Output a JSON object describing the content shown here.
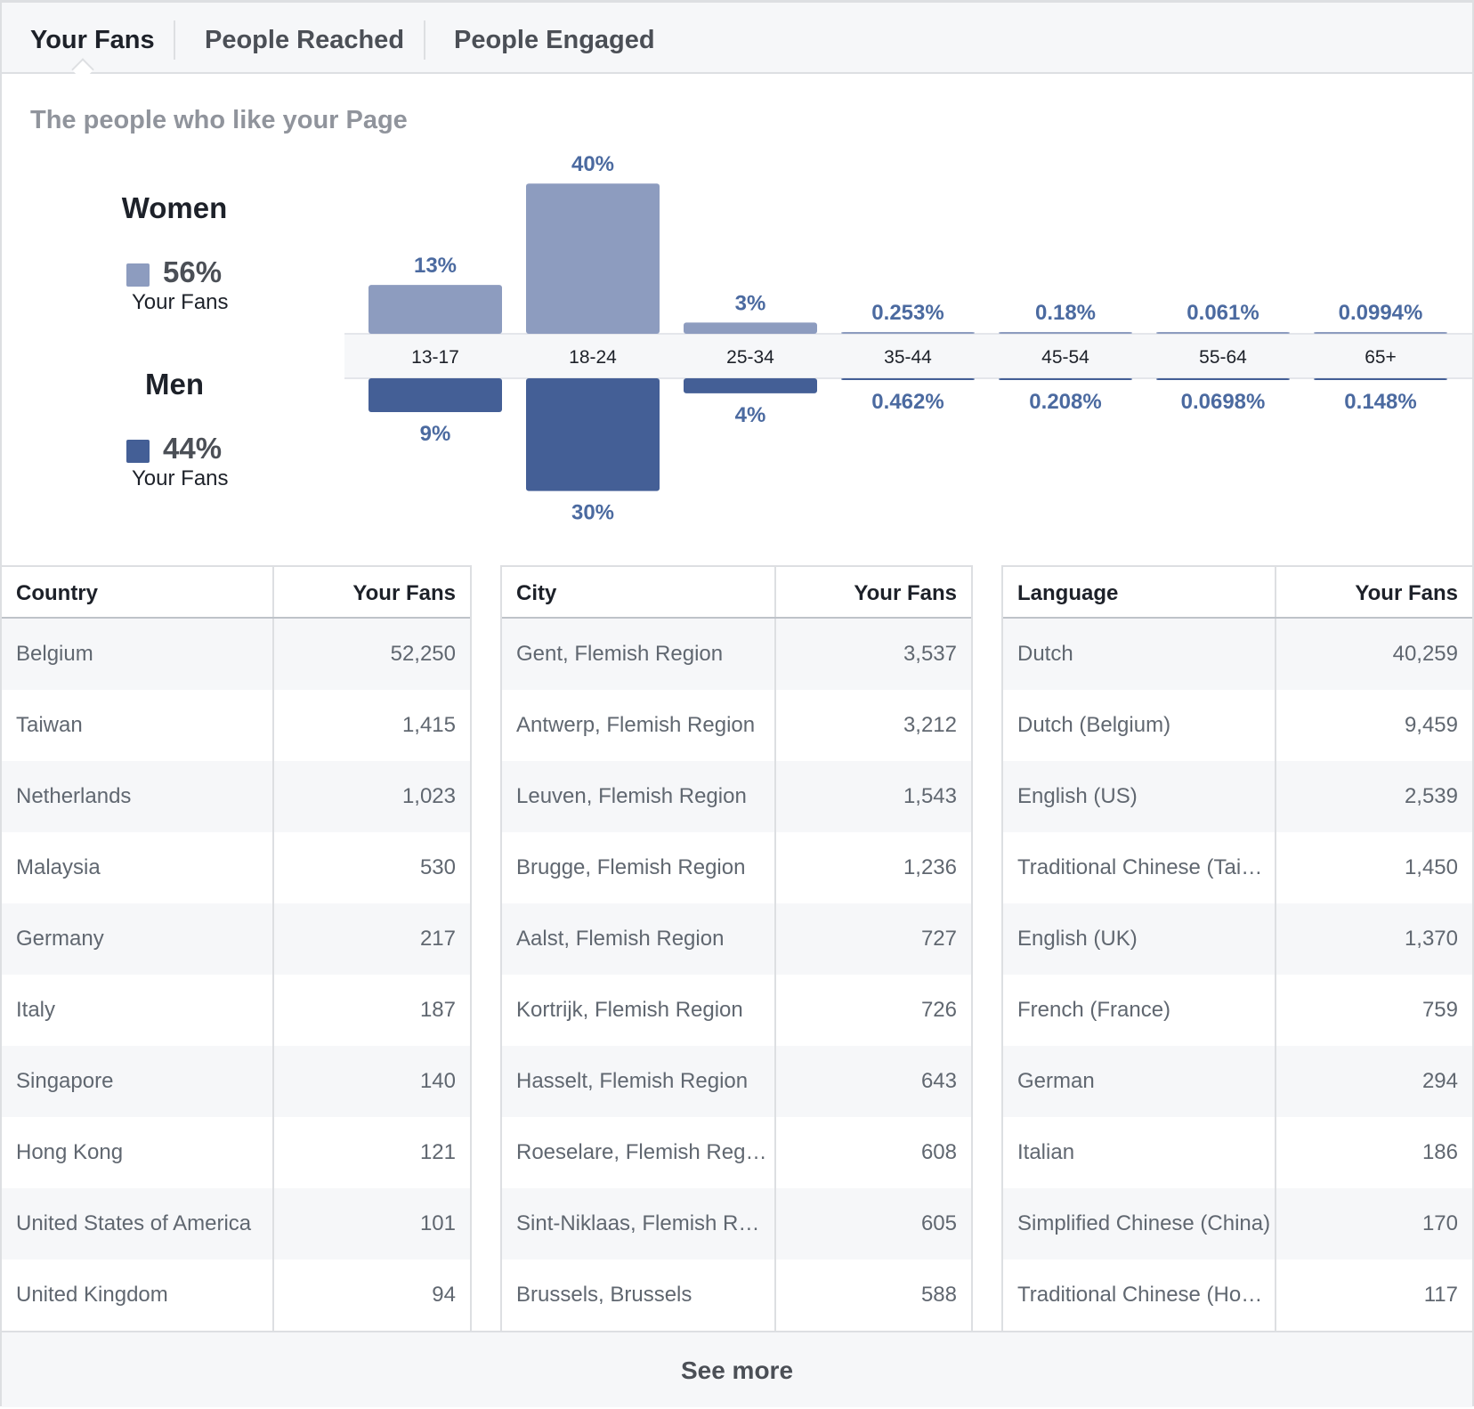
{
  "tabs": [
    {
      "label": "Your Fans",
      "active": true
    },
    {
      "label": "People Reached",
      "active": false
    },
    {
      "label": "People Engaged",
      "active": false
    }
  ],
  "subtitle": "The people who like your Page",
  "legend": {
    "women": {
      "title": "Women",
      "pct": "56%",
      "sub": "Your Fans",
      "color": "#8d9cbf"
    },
    "men": {
      "title": "Men",
      "pct": "44%",
      "sub": "Your Fans",
      "color": "#445f96"
    }
  },
  "chart_data": {
    "type": "bar",
    "categories": [
      "13-17",
      "18-24",
      "25-34",
      "35-44",
      "45-54",
      "55-64",
      "65+"
    ],
    "series": [
      {
        "name": "Women",
        "values": [
          13,
          40,
          3,
          0.253,
          0.18,
          0.061,
          0.0994
        ],
        "labels": [
          "13%",
          "40%",
          "3%",
          "0.253%",
          "0.18%",
          "0.061%",
          "0.0994%"
        ],
        "color": "#8d9cbf"
      },
      {
        "name": "Men",
        "values": [
          9,
          30,
          4,
          0.462,
          0.208,
          0.0698,
          0.148
        ],
        "labels": [
          "9%",
          "30%",
          "4%",
          "0.462%",
          "0.208%",
          "0.0698%",
          "0.148%"
        ],
        "color": "#445f96"
      }
    ]
  },
  "tables": {
    "country": {
      "header": [
        "Country",
        "Your Fans"
      ],
      "rows": [
        [
          "Belgium",
          "52,250"
        ],
        [
          "Taiwan",
          "1,415"
        ],
        [
          "Netherlands",
          "1,023"
        ],
        [
          "Malaysia",
          "530"
        ],
        [
          "Germany",
          "217"
        ],
        [
          "Italy",
          "187"
        ],
        [
          "Singapore",
          "140"
        ],
        [
          "Hong Kong",
          "121"
        ],
        [
          "United States of America",
          "101"
        ],
        [
          "United Kingdom",
          "94"
        ]
      ]
    },
    "city": {
      "header": [
        "City",
        "Your Fans"
      ],
      "rows": [
        [
          "Gent, Flemish Region",
          "3,537"
        ],
        [
          "Antwerp, Flemish Region",
          "3,212"
        ],
        [
          "Leuven, Flemish Region",
          "1,543"
        ],
        [
          "Brugge, Flemish Region",
          "1,236"
        ],
        [
          "Aalst, Flemish Region",
          "727"
        ],
        [
          "Kortrijk, Flemish Region",
          "726"
        ],
        [
          "Hasselt, Flemish Region",
          "643"
        ],
        [
          "Roeselare, Flemish Reg…",
          "608"
        ],
        [
          "Sint-Niklaas, Flemish R…",
          "605"
        ],
        [
          "Brussels, Brussels",
          "588"
        ]
      ]
    },
    "language": {
      "header": [
        "Language",
        "Your Fans"
      ],
      "rows": [
        [
          "Dutch",
          "40,259"
        ],
        [
          "Dutch (Belgium)",
          "9,459"
        ],
        [
          "English (US)",
          "2,539"
        ],
        [
          "Traditional Chinese (Tai…",
          "1,450"
        ],
        [
          "English (UK)",
          "1,370"
        ],
        [
          "French (France)",
          "759"
        ],
        [
          "German",
          "294"
        ],
        [
          "Italian",
          "186"
        ],
        [
          "Simplified Chinese (China)",
          "170"
        ],
        [
          "Traditional Chinese (Ho…",
          "117"
        ]
      ]
    }
  },
  "see_more": "See more"
}
